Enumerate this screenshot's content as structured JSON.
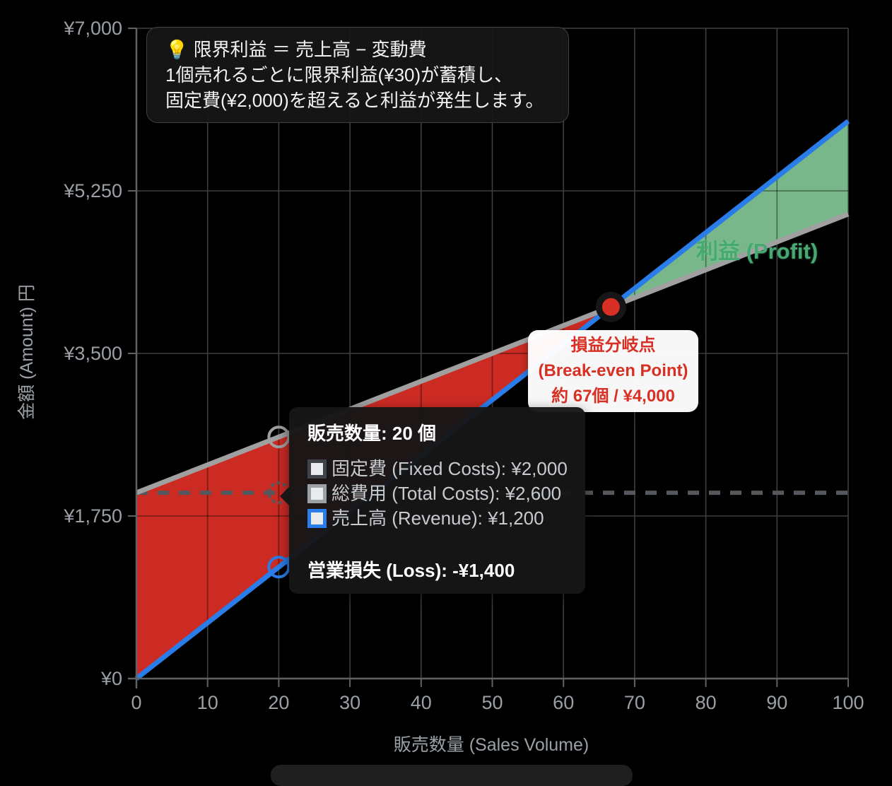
{
  "colors": {
    "background": "#000000",
    "loss_area": "#dc2f26",
    "profit_area": "#82c795",
    "revenue_line": "#2a7de9",
    "total_cost_line": "#a0a0a0",
    "fixed_cost_dash": "#54585c",
    "break_even_dot": "#d93025",
    "break_even_text": "#d93025",
    "tick_text": "#9aa0a6",
    "grid": "#3c4043"
  },
  "info_box": {
    "line1": "💡 限界利益 ＝ 売上高 − 変動費",
    "line2": "1個売れるごとに限界利益(¥30)が蓄積し、",
    "line3": "固定費(¥2,000)を超えると利益が発生します。"
  },
  "tooltip": {
    "title": "販売数量: 20 個",
    "rows": [
      {
        "text": "固定費 (Fixed Costs): ¥2,000",
        "swatch_border": "#3f4448"
      },
      {
        "text": "総費用 (Total Costs): ¥2,600",
        "swatch_border": "#9aa0a6"
      },
      {
        "text": "売上高 (Revenue): ¥1,200",
        "swatch_border": "#2a7de9"
      }
    ],
    "footer": "営業損失 (Loss): -¥1,400"
  },
  "break_even_label": {
    "line1": "損益分岐点",
    "line2": "(Break-even Point)",
    "line3": "約 67個 / ¥4,000"
  },
  "profit_label": "利益 (Profit)",
  "chart_data": {
    "type": "line",
    "title": "",
    "xlabel": "販売数量 (Sales Volume)",
    "ylabel": "金額 (Amount) 円",
    "x_range": [
      0,
      100
    ],
    "y_range": [
      0,
      7000
    ],
    "grid": true,
    "x_ticks": [
      0,
      10,
      20,
      30,
      40,
      50,
      60,
      70,
      80,
      90,
      100
    ],
    "y_ticks": [
      {
        "value": 0,
        "label": "¥0"
      },
      {
        "value": 1750,
        "label": "¥1,750"
      },
      {
        "value": 3500,
        "label": "¥3,500"
      },
      {
        "value": 5250,
        "label": "¥5,250"
      },
      {
        "value": 7000,
        "label": "¥7,000"
      }
    ],
    "series": [
      {
        "name": "固定費 (Fixed Costs)",
        "color": "#54585c",
        "width": 6,
        "dash": [
          16,
          14
        ],
        "points": [
          [
            0,
            2000
          ],
          [
            100,
            2000
          ]
        ]
      },
      {
        "name": "総費用 (Total Costs)",
        "color": "#a0a0a0",
        "width": 7,
        "points": [
          [
            0,
            2000
          ],
          [
            100,
            5000
          ]
        ]
      },
      {
        "name": "売上高 (Revenue)",
        "color": "#2a7de9",
        "width": 7,
        "points": [
          [
            0,
            0
          ],
          [
            100,
            6000
          ]
        ]
      }
    ],
    "areas": [
      {
        "name": "loss",
        "color": "#dc2f26",
        "opacity": 0.92,
        "points": [
          [
            0,
            0
          ],
          [
            66.67,
            4000
          ],
          [
            0,
            2000
          ]
        ]
      },
      {
        "name": "profit",
        "color": "#82c795",
        "opacity": 0.92,
        "points": [
          [
            66.67,
            4000
          ],
          [
            100,
            6000
          ],
          [
            100,
            5000
          ]
        ]
      }
    ],
    "break_even": {
      "x": 66.67,
      "y": 4000,
      "quantity_label": 67,
      "amount_label": 4000,
      "dot_color": "#d93025",
      "ring_color": "#161616"
    },
    "hover_markers": [
      {
        "x": 20,
        "y": 2600,
        "color": "#a0a0a0",
        "dashed": false
      },
      {
        "x": 20,
        "y": 2000,
        "color": "#54585c",
        "dashed": true
      },
      {
        "x": 20,
        "y": 1200,
        "color": "#2a7de9",
        "dashed": false
      }
    ],
    "hover_state": {
      "quantity": 20,
      "fixed_costs": 2000,
      "total_costs": 2600,
      "revenue": 1200,
      "operating_loss": -1400
    }
  }
}
